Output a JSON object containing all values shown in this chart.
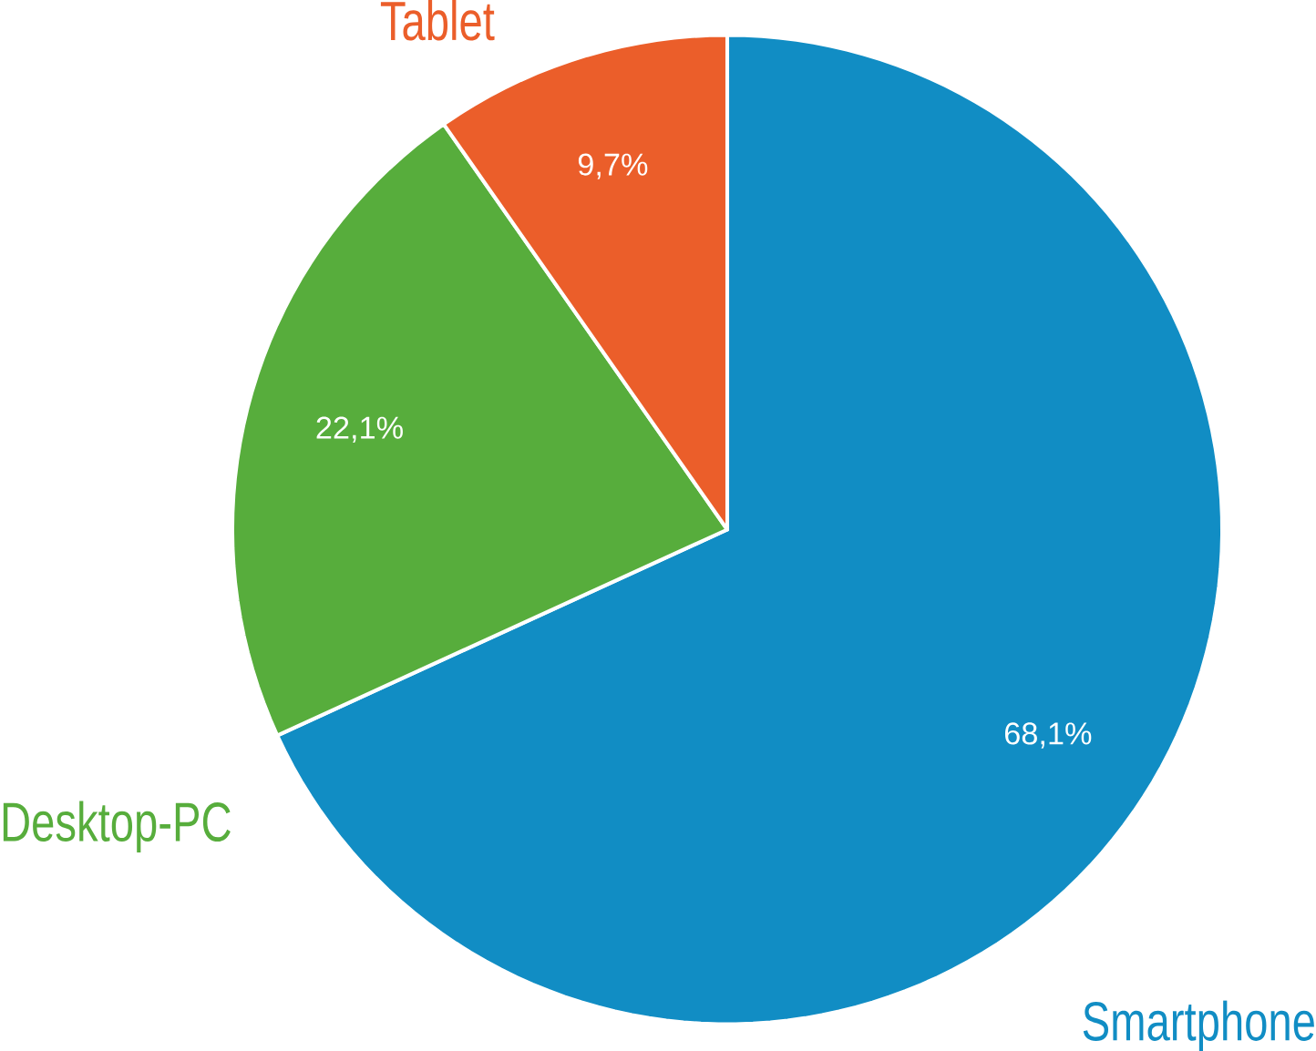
{
  "chart_data": {
    "type": "pie",
    "categories": [
      "Smartphone",
      "Desktop-PC",
      "Tablet"
    ],
    "values": [
      68.1,
      22.1,
      9.7
    ],
    "colors": [
      "#118dc4",
      "#57ad3c",
      "#eb5e2a"
    ],
    "value_labels": [
      "68,1%",
      "22,1%",
      "9,7%"
    ]
  }
}
